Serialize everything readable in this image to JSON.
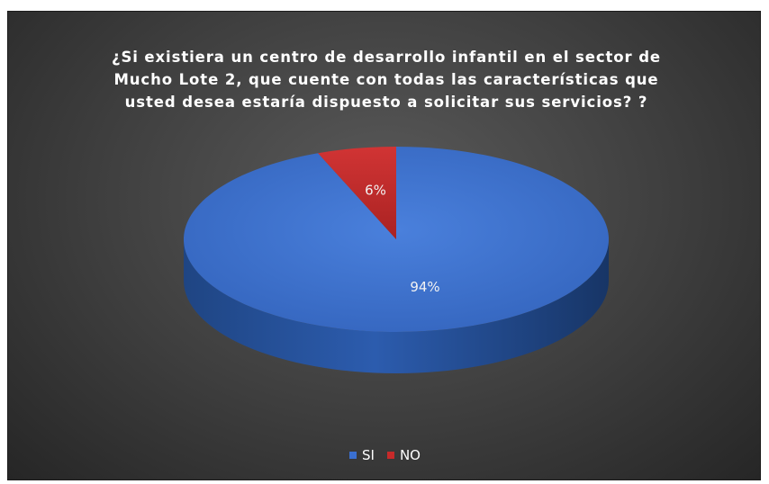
{
  "chart_data": {
    "type": "pie",
    "title": "¿Si existiera un centro de desarrollo infantil en el sector de\nMucho Lote 2, que cuente con todas las características que\nusted desea estaría dispuesto a solicitar sus servicios?    ?",
    "slices": [
      {
        "label": "SI",
        "value": 94,
        "display": "94%",
        "color": "#3a6fd0"
      },
      {
        "label": "NO",
        "value": 6,
        "display": "6%",
        "color": "#c62a2a"
      }
    ],
    "legend_position": "bottom",
    "style": "3d"
  }
}
